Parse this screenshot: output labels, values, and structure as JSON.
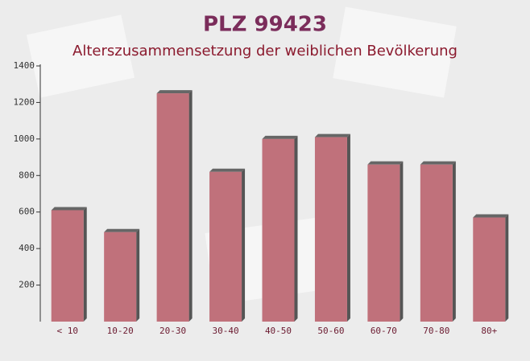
{
  "chart_data": {
    "type": "bar",
    "title": "PLZ 99423",
    "subtitle": "Alterszusammensetzung der weiblichen Bevölkerung",
    "categories": [
      "< 10",
      "10-20",
      "20-30",
      "30-40",
      "40-50",
      "50-60",
      "60-70",
      "70-80",
      "80+"
    ],
    "values": [
      610,
      490,
      1250,
      820,
      1000,
      1010,
      860,
      860,
      570
    ],
    "color": "#c0717b",
    "ylim": [
      0,
      1400
    ],
    "yticks": [
      200,
      400,
      600,
      800,
      1000,
      1200,
      1400
    ],
    "grid": false
  }
}
